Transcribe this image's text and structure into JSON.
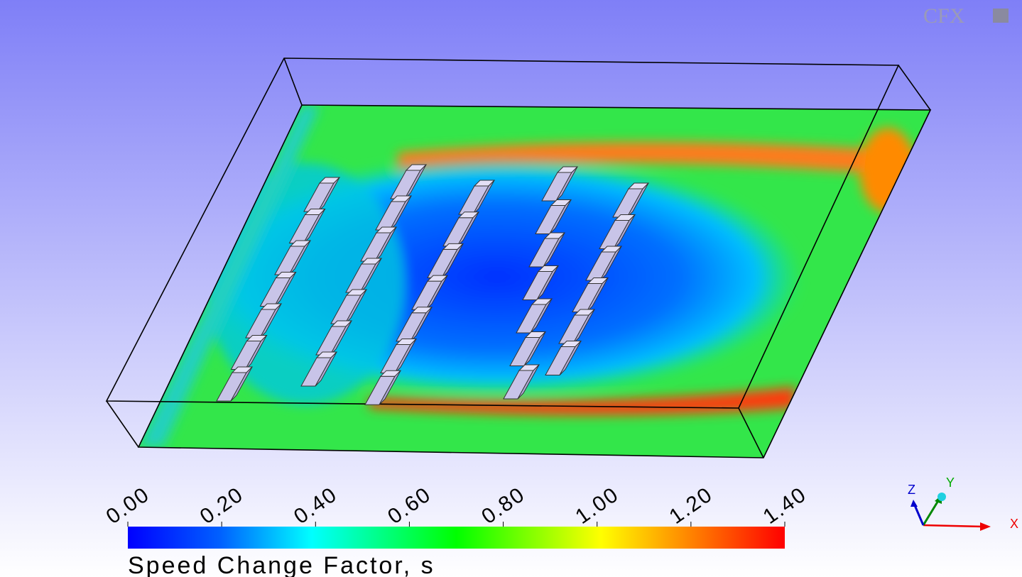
{
  "logo": "CFX",
  "legend": {
    "title": "Speed Change Factor, s",
    "ticks": [
      {
        "value": 0,
        "label": "0.00"
      },
      {
        "value": 0.2,
        "label": "0.20"
      },
      {
        "value": 0.4,
        "label": "0.40"
      },
      {
        "value": 0.6,
        "label": "0.60"
      },
      {
        "value": 0.8,
        "label": "0.80"
      },
      {
        "value": 1,
        "label": "1.00"
      },
      {
        "value": 1.2,
        "label": "1.20"
      },
      {
        "value": 1.4,
        "label": "1.40"
      }
    ]
  },
  "axes": {
    "x": "X",
    "y": "Y",
    "z": "Z"
  }
}
